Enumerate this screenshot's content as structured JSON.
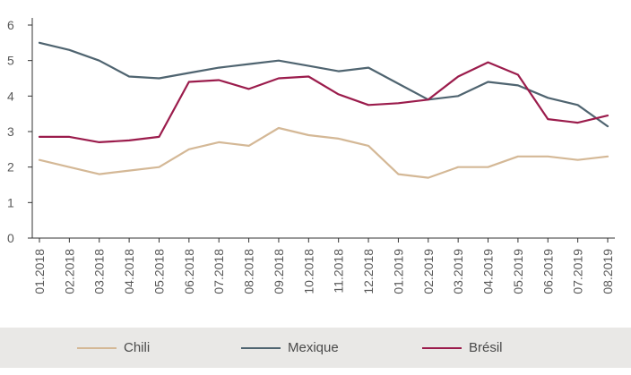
{
  "chart_data": {
    "type": "line",
    "title": "",
    "xlabel": "",
    "ylabel": "",
    "ylim": [
      0,
      6
    ],
    "yticks": [
      0,
      1,
      2,
      3,
      4,
      5,
      6
    ],
    "grid": false,
    "legend_position": "bottom",
    "categories": [
      "01.2018",
      "02.2018",
      "03.2018",
      "04.2018",
      "05.2018",
      "06.2018",
      "07.2018",
      "08.2018",
      "09.2018",
      "10.2018",
      "11.2018",
      "12.2018",
      "01.2019",
      "02.2019",
      "03.2019",
      "04.2019",
      "05.2019",
      "06.2019",
      "07.2019",
      "08.2019"
    ],
    "series": [
      {
        "name": "Chili",
        "color": "#d4b896",
        "values": [
          2.2,
          2.0,
          1.8,
          1.9,
          2.0,
          2.5,
          2.7,
          2.6,
          3.1,
          2.9,
          2.8,
          2.6,
          1.8,
          1.7,
          2.0,
          2.0,
          2.3,
          2.3,
          2.2,
          2.3
        ]
      },
      {
        "name": "Mexique",
        "color": "#4f6470",
        "values": [
          5.5,
          5.3,
          5.0,
          4.55,
          4.5,
          4.65,
          4.8,
          4.9,
          5.0,
          4.85,
          4.7,
          4.8,
          4.35,
          3.9,
          4.0,
          4.4,
          4.3,
          3.95,
          3.75,
          3.15
        ]
      },
      {
        "name": "Brésil",
        "color": "#9b1c4c",
        "values": [
          2.85,
          2.85,
          2.7,
          2.75,
          2.85,
          4.4,
          4.45,
          4.2,
          4.5,
          4.55,
          4.05,
          3.75,
          3.8,
          3.9,
          4.55,
          4.95,
          4.6,
          3.35,
          3.25,
          3.45
        ]
      }
    ]
  }
}
